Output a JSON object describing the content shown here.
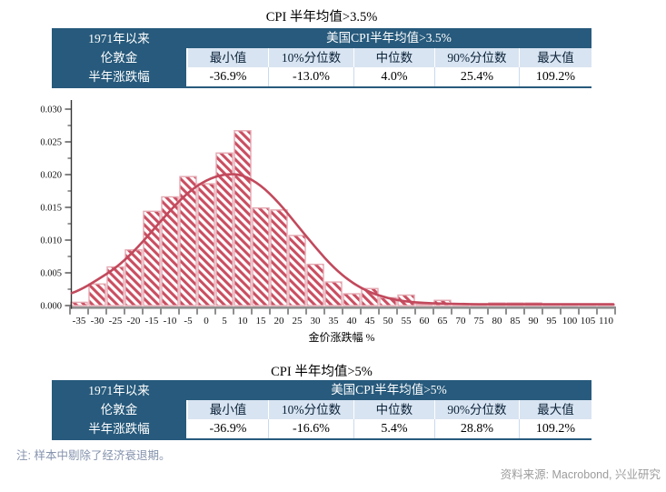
{
  "page": {
    "section1": {
      "title": "CPI 半年均值>3.5%"
    },
    "section2": {
      "title": "CPI 半年均值>5%"
    },
    "note": "注: 样本中剔除了经济衰退期。",
    "source": "资料来源: Macrobond, 兴业研究"
  },
  "table1": {
    "row_header": [
      "1971年以来",
      "伦敦金",
      "半年涨跌幅"
    ],
    "span_header": "美国CPI半年均值>3.5%",
    "columns": [
      "最小值",
      "10%分位数",
      "中位数",
      "90%分位数",
      "最大值"
    ],
    "values": [
      "-36.9%",
      "-13.0%",
      "4.0%",
      "25.4%",
      "109.2%"
    ]
  },
  "table2": {
    "row_header": [
      "1971年以来",
      "伦敦金",
      "半年涨跌幅"
    ],
    "span_header": "美国CPI半年均值>5%",
    "columns": [
      "最小值",
      "10%分位数",
      "中位数",
      "90%分位数",
      "最大值"
    ],
    "values": [
      "-36.9%",
      "-16.6%",
      "5.4%",
      "28.8%",
      "109.2%"
    ]
  },
  "chart_data": {
    "type": "bar",
    "subtype": "histogram_with_density_curve",
    "title": "",
    "xlabel": "金价涨跌幅 %",
    "ylabel": "",
    "xlim": [
      -37.5,
      112.5
    ],
    "ylim": [
      0,
      0.03
    ],
    "bin_width": 5,
    "grid": false,
    "legend": "none",
    "x_ticks": [
      -35,
      -30,
      -25,
      -20,
      -15,
      -10,
      -5,
      0,
      5,
      10,
      15,
      20,
      25,
      30,
      35,
      40,
      45,
      50,
      55,
      60,
      65,
      70,
      75,
      80,
      85,
      90,
      95,
      100,
      105,
      110
    ],
    "y_ticks": [
      0,
      0.005,
      0.01,
      0.015,
      0.02,
      0.025,
      0.03
    ],
    "bars": {
      "x": [
        -35,
        -30,
        -25,
        -20,
        -15,
        -10,
        -5,
        0,
        5,
        10,
        15,
        20,
        25,
        30,
        35,
        40,
        45,
        50,
        55,
        60,
        65,
        70,
        75,
        80,
        85,
        90,
        95,
        100,
        105,
        110
      ],
      "density": [
        0.0005,
        0.0033,
        0.0059,
        0.0085,
        0.0144,
        0.0166,
        0.0197,
        0.0186,
        0.0233,
        0.0267,
        0.0149,
        0.0146,
        0.0107,
        0.0063,
        0.0036,
        0.0018,
        0.0026,
        0.0012,
        0.0016,
        0.0002,
        0.0008,
        0.0001,
        0.0001,
        0.0004,
        0.0004,
        0.0004,
        0.0002,
        0.0002,
        0.0001,
        0.0002
      ]
    },
    "density_curve": {
      "x": [
        -37,
        -35,
        -30,
        -25,
        -20,
        -15,
        -10,
        -5,
        0,
        5,
        10,
        15,
        20,
        25,
        30,
        35,
        40,
        45,
        50,
        55,
        60,
        65,
        70,
        75,
        80,
        85,
        90,
        95,
        100,
        105,
        110,
        112
      ],
      "y": [
        0.0019,
        0.0023,
        0.0039,
        0.0057,
        0.0082,
        0.0113,
        0.0145,
        0.0173,
        0.0192,
        0.0201,
        0.02,
        0.0184,
        0.0157,
        0.0123,
        0.0089,
        0.0058,
        0.0035,
        0.002,
        0.0011,
        0.0006,
        0.0004,
        0.0003,
        0.00025,
        0.0002,
        0.0002,
        0.0002,
        0.0002,
        0.0002,
        0.0002,
        0.0002,
        0.0002,
        0.0002
      ]
    },
    "bar_hatch_color": "#ca4e61",
    "bar_border_color": "#e4a9b2",
    "curve_color": "#c2495c",
    "axis_color": "#8f8f8f",
    "tick_color": "#333333"
  },
  "colors": {
    "table_header_blue": "#275a7c",
    "table_subheader_blue": "#d8e4f1",
    "value_divider_blue": "#c9daed",
    "note_blue_gray": "#8593ad",
    "source_gray": "#9c9c9c"
  }
}
